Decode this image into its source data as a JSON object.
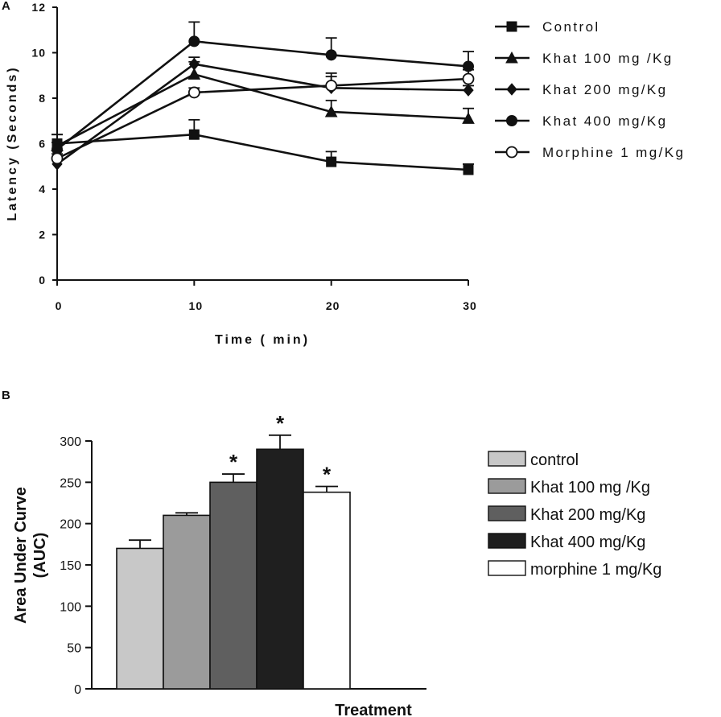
{
  "chart_data": [
    {
      "panel": "A",
      "type": "line",
      "xlabel": "Time ( min)",
      "ylabel": "Latency (Seconds)",
      "xlim": [
        0,
        30
      ],
      "ylim": [
        0,
        12
      ],
      "xticks": [
        "0",
        "10",
        "20",
        "30"
      ],
      "yticks": [
        "0",
        "2",
        "4",
        "6",
        "8",
        "10",
        "12"
      ],
      "x": [
        0,
        10,
        20,
        30
      ],
      "legend_position": "right",
      "series": [
        {
          "name": "Control",
          "marker": "square",
          "values": [
            6.0,
            6.4,
            5.2,
            4.85
          ],
          "errors": [
            0.4,
            0.65,
            0.45,
            0.25
          ]
        },
        {
          "name": "Khat 100 mg /Kg",
          "marker": "triangle",
          "values": [
            5.9,
            9.05,
            7.4,
            7.1
          ],
          "errors": [
            0.5,
            0.55,
            0.5,
            0.45
          ]
        },
        {
          "name": "Khat 200 mg/Kg",
          "marker": "diamond",
          "values": [
            5.1,
            9.5,
            8.45,
            8.35
          ],
          "errors": [
            0.3,
            0.3,
            0.5,
            0.2
          ]
        },
        {
          "name": "Khat 400 mg/Kg",
          "marker": "circle",
          "values": [
            5.75,
            10.5,
            9.9,
            9.4
          ],
          "errors": [
            0.3,
            0.85,
            0.75,
            0.65
          ]
        },
        {
          "name": "Morphine 1 mg/Kg",
          "marker": "open-circle",
          "values": [
            5.35,
            8.25,
            8.55,
            8.85
          ],
          "errors": [
            0.2,
            0.2,
            0.55,
            0.4
          ]
        }
      ]
    },
    {
      "panel": "B",
      "type": "bar",
      "xlabel": "Treatment",
      "ylabel": "Area Under Curve (AUC)",
      "ylabel_lines": [
        "Area Under Curve",
        "(AUC)"
      ],
      "ylim": [
        0,
        300
      ],
      "yticks": [
        "0",
        "50",
        "100",
        "150",
        "200",
        "250",
        "300"
      ],
      "legend_position": "right",
      "categories": [
        "control",
        "Khat 100 mg /Kg",
        "Khat 200 mg/Kg",
        "Khat 400 mg/Kg",
        "morphine 1 mg/Kg"
      ],
      "values": [
        170,
        210,
        250,
        290,
        238
      ],
      "errors": [
        10,
        3,
        10,
        17,
        7
      ],
      "significance": [
        "",
        "",
        "*",
        "*",
        "*"
      ],
      "colors": [
        "#c8c8c8",
        "#9b9b9b",
        "#5f5f5f",
        "#1f1f1f",
        "#ffffff"
      ]
    }
  ]
}
